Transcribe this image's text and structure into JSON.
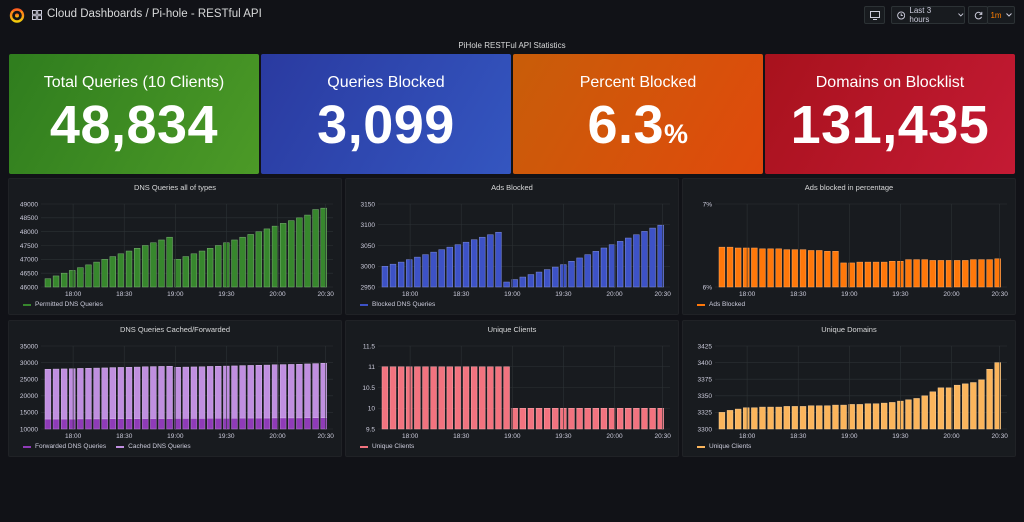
{
  "topbar": {
    "breadcrumb": "Cloud Dashboards / Pi-hole - RESTful API",
    "time_range": "Last 3 hours",
    "refresh_interval": "1m",
    "accent": "#ff7f00"
  },
  "row_title": "PiHole RESTFul API Statistics",
  "stats": [
    {
      "title": "Total Queries (10 Clients)",
      "value": "48,834",
      "unit": "",
      "color_from": "#2f7d1e",
      "color_to": "#4c9a27"
    },
    {
      "title": "Queries Blocked",
      "value": "3,099",
      "unit": "",
      "color_from": "#2a3aa0",
      "color_to": "#3456c0"
    },
    {
      "title": "Percent Blocked",
      "value": "6.3",
      "unit": "%",
      "color_from": "#c85d09",
      "color_to": "#e04a0c"
    },
    {
      "title": "Domains on Blocklist",
      "value": "131,435",
      "unit": "",
      "color_from": "#a8121d",
      "color_to": "#c41a34"
    }
  ],
  "chart_data": [
    {
      "title": "DNS Queries all of types",
      "type": "bar",
      "xticks": [
        "18:00",
        "18:30",
        "19:00",
        "19:30",
        "20:00",
        "20:30"
      ],
      "yticks": [
        "46000",
        "46500",
        "47000",
        "47500",
        "48000",
        "48500",
        "49000"
      ],
      "ylim": [
        46000,
        49000
      ],
      "series": [
        {
          "name": "Permitted DNS Queries",
          "color": "#37872d",
          "values": [
            46300,
            46400,
            46500,
            46600,
            46700,
            46800,
            46900,
            47000,
            47100,
            47200,
            47300,
            47400,
            47500,
            47600,
            47700,
            47800,
            47000,
            47100,
            47200,
            47300,
            47400,
            47500,
            47600,
            47700,
            47800,
            47900,
            48000,
            48100,
            48200,
            48300,
            48400,
            48500,
            48600,
            48800,
            48850
          ]
        }
      ]
    },
    {
      "title": "Ads Blocked",
      "type": "bar",
      "xticks": [
        "18:00",
        "18:30",
        "19:00",
        "19:30",
        "20:00",
        "20:30"
      ],
      "yticks": [
        "2950",
        "3000",
        "3050",
        "3100",
        "3150"
      ],
      "ylim": [
        2950,
        3150
      ],
      "series": [
        {
          "name": "Blocked DNS Queries",
          "color": "#3d52c6",
          "values": [
            3000,
            3005,
            3010,
            3016,
            3022,
            3028,
            3034,
            3040,
            3046,
            3052,
            3058,
            3064,
            3070,
            3076,
            3082,
            2962,
            2968,
            2974,
            2980,
            2986,
            2992,
            2998,
            3004,
            3012,
            3020,
            3028,
            3036,
            3044,
            3052,
            3060,
            3068,
            3076,
            3084,
            3092,
            3099
          ]
        }
      ]
    },
    {
      "title": "Ads blocked in percentage",
      "type": "bar",
      "xticks": [
        "18:00",
        "18:30",
        "19:00",
        "19:30",
        "20:00",
        "20:30"
      ],
      "yticks": [
        "6%",
        "7%"
      ],
      "ylim": [
        6,
        7
      ],
      "series": [
        {
          "name": "Ads Blocked",
          "color": "#ff780a",
          "values": [
            6.48,
            6.48,
            6.47,
            6.47,
            6.47,
            6.46,
            6.46,
            6.46,
            6.45,
            6.45,
            6.45,
            6.44,
            6.44,
            6.43,
            6.43,
            6.29,
            6.29,
            6.3,
            6.3,
            6.3,
            6.3,
            6.31,
            6.31,
            6.33,
            6.33,
            6.33,
            6.32,
            6.32,
            6.32,
            6.32,
            6.32,
            6.33,
            6.33,
            6.33,
            6.34
          ]
        }
      ]
    },
    {
      "title": "DNS Queries Cached/Forwarded",
      "type": "bar",
      "xticks": [
        "18:00",
        "18:30",
        "19:00",
        "19:30",
        "20:00",
        "20:30"
      ],
      "yticks": [
        "10000",
        "15000",
        "20000",
        "25000",
        "30000",
        "35000"
      ],
      "ylim": [
        10000,
        35000
      ],
      "series": [
        {
          "name": "Forwarded DNS Queries",
          "color": "#8f3bb8",
          "values": [
            13000,
            13000,
            13000,
            13000,
            13050,
            13050,
            13050,
            13050,
            13100,
            13100,
            13100,
            13100,
            13150,
            13150,
            13150,
            13150,
            13200,
            13200,
            13200,
            13200,
            13250,
            13250,
            13250,
            13250,
            13300,
            13300,
            13300,
            13300,
            13350,
            13350,
            13350,
            13350,
            13400,
            13400,
            13400
          ]
        },
        {
          "name": "Cached DNS Queries",
          "color": "#c08fe0",
          "values": [
            15000,
            15050,
            15100,
            15150,
            15200,
            15250,
            15300,
            15350,
            15400,
            15450,
            15500,
            15550,
            15600,
            15650,
            15700,
            15750,
            15400,
            15450,
            15500,
            15550,
            15600,
            15650,
            15700,
            15750,
            15800,
            15850,
            15900,
            15950,
            16000,
            16050,
            16100,
            16150,
            16200,
            16300,
            16400
          ]
        }
      ]
    },
    {
      "title": "Unique Clients",
      "type": "bar",
      "xticks": [
        "18:00",
        "18:30",
        "19:00",
        "19:30",
        "20:00",
        "20:30"
      ],
      "yticks": [
        "9.5",
        "10",
        "10.5",
        "11",
        "11.5"
      ],
      "ylim": [
        9.5,
        11.5
      ],
      "series": [
        {
          "name": "Unique Clients",
          "color": "#f2737f",
          "values": [
            11,
            11,
            11,
            11,
            11,
            11,
            11,
            11,
            11,
            11,
            11,
            11,
            11,
            11,
            11,
            11,
            10,
            10,
            10,
            10,
            10,
            10,
            10,
            10,
            10,
            10,
            10,
            10,
            10,
            10,
            10,
            10,
            10,
            10,
            10
          ]
        }
      ]
    },
    {
      "title": "Unique Domains",
      "type": "bar",
      "xticks": [
        "18:00",
        "18:30",
        "19:00",
        "19:30",
        "20:00",
        "20:30"
      ],
      "yticks": [
        "3300",
        "3325",
        "3350",
        "3375",
        "3400",
        "3425"
      ],
      "ylim": [
        3300,
        3425
      ],
      "series": [
        {
          "name": "Unique Clients",
          "color": "#fbb55c",
          "values": [
            3325,
            3328,
            3330,
            3332,
            3332,
            3333,
            3333,
            3333,
            3334,
            3334,
            3334,
            3335,
            3335,
            3335,
            3336,
            3336,
            3337,
            3337,
            3338,
            3338,
            3339,
            3340,
            3342,
            3344,
            3346,
            3350,
            3356,
            3362,
            3362,
            3366,
            3368,
            3370,
            3374,
            3390,
            3400
          ]
        }
      ]
    }
  ]
}
